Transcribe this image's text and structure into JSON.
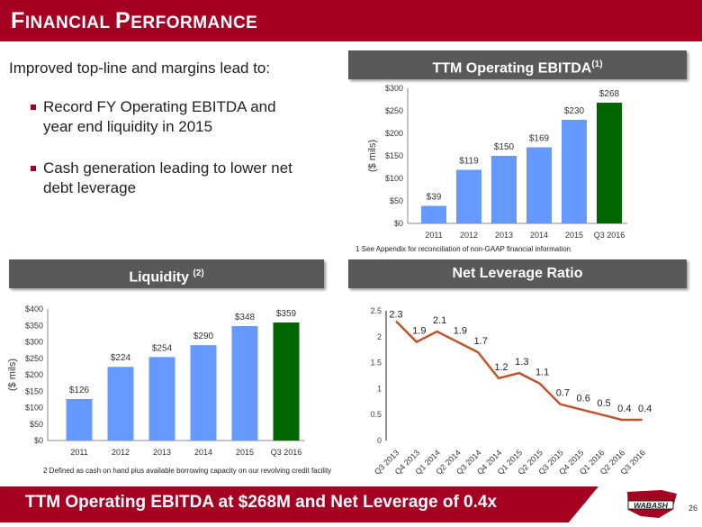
{
  "title": {
    "first": "F",
    "rest1": "INANCIAL ",
    "second": "P",
    "rest2": "ERFORMANCE"
  },
  "intro": "Improved top-line and margins lead to:",
  "bullets": [
    "Record FY Operating EBITDA and year end liquidity in 2015",
    "Cash generation leading to lower net debt leverage"
  ],
  "footer_text": "TTM Operating EBITDA at $268M and Net Leverage of 0.4x",
  "page_number": "26",
  "logo_text": "WABASH",
  "colors": {
    "brand": "#A50021",
    "bar": "#6699FF",
    "highlight": "#006600",
    "line": "#C0532E",
    "header": "#595959"
  },
  "chart_data": [
    {
      "type": "bar",
      "title": "TTM Operating EBITDA",
      "title_sup": "(1)",
      "ylabel": "($ mils)",
      "categories": [
        "2011",
        "2012",
        "2013",
        "2014",
        "2015",
        "Q3 2016"
      ],
      "values": [
        39,
        119,
        150,
        169,
        230,
        268
      ],
      "labels": [
        "$39",
        "$119",
        "$150",
        "$169",
        "$230",
        "$268"
      ],
      "ylim": [
        0,
        300
      ],
      "yticks": [
        "$0",
        "$50",
        "$100",
        "$150",
        "$200",
        "$250",
        "$300"
      ],
      "footnote": "1  See Appendix for reconciliation of non-GAAP financial information"
    },
    {
      "type": "bar",
      "title": "Liquidity",
      "title_sup": "(2)",
      "ylabel": "($ mils)",
      "categories": [
        "2011",
        "2012",
        "2013",
        "2014",
        "2015",
        "Q3 2016"
      ],
      "values": [
        126,
        224,
        254,
        290,
        348,
        359
      ],
      "labels": [
        "$126",
        "$224",
        "$254",
        "$290",
        "$348",
        "$359"
      ],
      "ylim": [
        0,
        400
      ],
      "yticks": [
        "$0",
        "$50",
        "$100",
        "$150",
        "$200",
        "$250",
        "$300",
        "$350",
        "$400"
      ],
      "footnote": "2  Defined as cash on hand plus available borrowing capacity on our revolving credit facility"
    },
    {
      "type": "line",
      "title": "Net Leverage Ratio",
      "categories": [
        "Q3 2013",
        "Q4 2013",
        "Q1 2014",
        "Q2 2014",
        "Q3 2014",
        "Q4 2014",
        "Q1 2015",
        "Q2 2015",
        "Q3 2015",
        "Q4 2015",
        "Q1 2016",
        "Q2 2016",
        "Q3 2016"
      ],
      "values": [
        2.3,
        1.9,
        2.1,
        1.9,
        1.7,
        1.2,
        1.3,
        1.1,
        0.7,
        0.6,
        0.5,
        0.4,
        0.4
      ],
      "ylim": [
        0,
        2.5
      ],
      "yticks": [
        "0",
        "0.5",
        "1",
        "1.5",
        "2",
        "2.5"
      ]
    }
  ]
}
